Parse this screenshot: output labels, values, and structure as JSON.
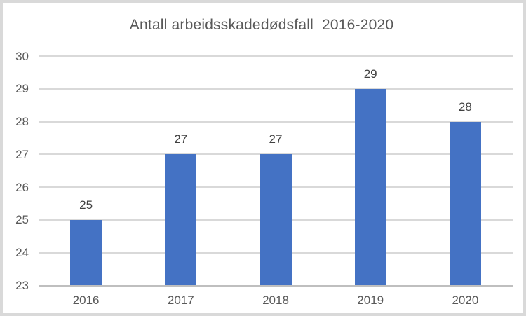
{
  "chart_data": {
    "type": "bar",
    "title": "Antall arbeidsskadedødsfall  2016-2020",
    "categories": [
      "2016",
      "2017",
      "2018",
      "2019",
      "2020"
    ],
    "values": [
      25,
      27,
      27,
      29,
      28
    ],
    "data_labels": [
      "25",
      "27",
      "27",
      "29",
      "28"
    ],
    "series_name": "Antall arbeidsskadedødsfall",
    "ylim": [
      23,
      30
    ],
    "yticks": [
      30,
      29,
      28,
      27,
      26,
      25,
      24,
      23
    ],
    "grid": "horizontal",
    "legend": "none",
    "colors": {
      "bar": "#4472C4",
      "gridline": "#D9D9D9",
      "axis_line": "#BFBFBF",
      "title_text": "#595959",
      "tick_text": "#595959",
      "data_label_text": "#404040",
      "background": "#FFFFFF",
      "frame_border": "#D9D9D9"
    }
  }
}
